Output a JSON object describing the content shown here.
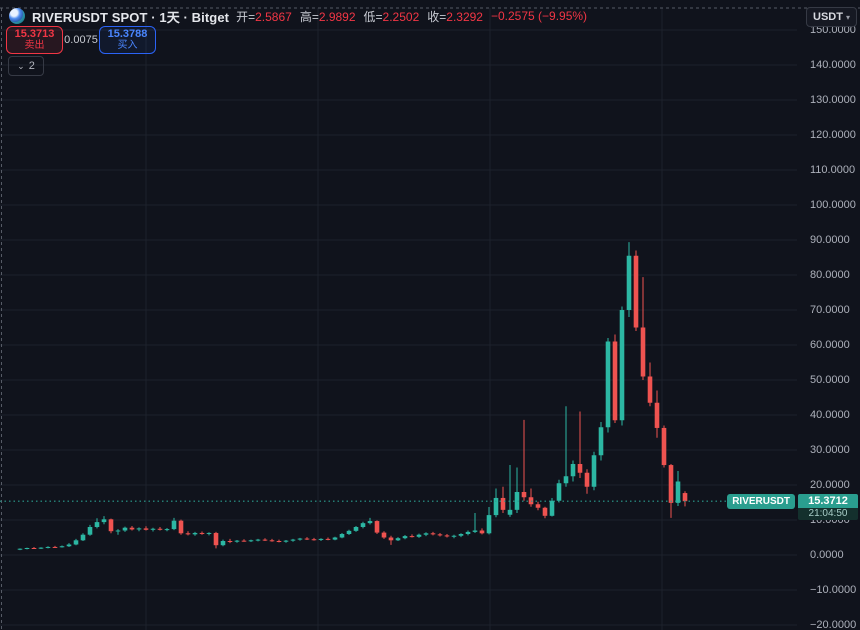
{
  "header": {
    "symbol_title": "RIVERUSDT SPOT · 1天 · Bitget",
    "open_label": "开=",
    "open": "2.5867",
    "high_label": "高=",
    "high": "2.9892",
    "low_label": "低=",
    "low": "2.2502",
    "close_label": "收=",
    "close": "2.3292",
    "change": "−0.2575 (−9.95%)"
  },
  "order_panel": {
    "sell_price": "15.3713",
    "sell_label": "卖出",
    "spread": "0.0075",
    "buy_price": "15.3788",
    "buy_label": "买入"
  },
  "toolbar": {
    "candle_widget_value": "2",
    "chevron": "⌄"
  },
  "price_axis": {
    "currency": "USDT",
    "caret": "▾",
    "labels": [
      "150.0000",
      "140.0000",
      "130.0000",
      "120.0000",
      "110.0000",
      "100.0000",
      "90.0000",
      "80.0000",
      "70.0000",
      "60.0000",
      "50.0000",
      "40.0000",
      "30.0000",
      "20.0000",
      "10.0000",
      "0.0000",
      "−10.0000",
      "−20.0000"
    ],
    "price_tag": {
      "symbol": "RIVERUSDT",
      "price": "15.3712",
      "countdown": "21:04:50"
    }
  },
  "colors": {
    "background": "#10131c",
    "grid": "#1d212c",
    "up": "#2cb7a3",
    "down": "#ef5350",
    "accent_red": "#f23645",
    "accent_blue": "#2b63f6",
    "tag_teal": "#2a9e8f",
    "dashed_border": "#565b66"
  },
  "chart_data": {
    "type": "candlestick",
    "symbol": "RIVERUSDT",
    "market": "SPOT",
    "interval": "1天",
    "exchange": "Bitget",
    "last_price": 15.3712,
    "y_axis": {
      "min": -20,
      "max": 150,
      "tick_step": 10
    },
    "legend_ohlc": {
      "open": 2.5867,
      "high": 2.9892,
      "low": 2.2502,
      "close": 2.3292,
      "change": -0.2575,
      "change_pct": -9.95
    },
    "candles_ohlc": [
      [
        1.6,
        1.9,
        1.4,
        1.8
      ],
      [
        1.8,
        2.1,
        1.6,
        2.0
      ],
      [
        2.0,
        2.3,
        1.8,
        1.9
      ],
      [
        1.9,
        2.2,
        1.7,
        2.1
      ],
      [
        2.1,
        2.5,
        1.9,
        2.3
      ],
      [
        2.3,
        2.6,
        2.0,
        2.2
      ],
      [
        2.2,
        2.7,
        2.1,
        2.5
      ],
      [
        2.5,
        3.4,
        2.3,
        3.0
      ],
      [
        3.0,
        4.6,
        2.8,
        4.2
      ],
      [
        4.2,
        6.2,
        4.0,
        5.8
      ],
      [
        5.8,
        8.6,
        5.5,
        8.0
      ],
      [
        8.0,
        10.5,
        7.6,
        9.4
      ],
      [
        9.4,
        11.1,
        8.8,
        10.2
      ],
      [
        10.2,
        10.4,
        6.2,
        6.8
      ],
      [
        6.8,
        7.4,
        5.8,
        7.0
      ],
      [
        7.0,
        8.1,
        6.6,
        7.8
      ],
      [
        7.8,
        8.3,
        7.0,
        7.3
      ],
      [
        7.3,
        7.9,
        6.8,
        7.6
      ],
      [
        7.6,
        8.2,
        7.0,
        7.2
      ],
      [
        7.2,
        7.8,
        6.7,
        7.5
      ],
      [
        7.5,
        8.0,
        7.0,
        7.2
      ],
      [
        7.2,
        7.7,
        6.8,
        7.4
      ],
      [
        7.4,
        10.6,
        7.1,
        9.8
      ],
      [
        9.8,
        10.1,
        5.8,
        6.2
      ],
      [
        6.2,
        6.8,
        5.6,
        5.9
      ],
      [
        5.9,
        6.6,
        5.5,
        6.3
      ],
      [
        6.3,
        6.7,
        5.8,
        6.1
      ],
      [
        6.1,
        6.5,
        5.6,
        6.3
      ],
      [
        6.3,
        6.6,
        1.9,
        2.8
      ],
      [
        2.8,
        4.4,
        2.5,
        4.0
      ],
      [
        4.0,
        4.6,
        3.4,
        3.8
      ],
      [
        3.8,
        4.3,
        3.5,
        4.1
      ],
      [
        4.1,
        4.5,
        3.8,
        4.0
      ],
      [
        4.0,
        4.4,
        3.7,
        4.2
      ],
      [
        4.2,
        4.6,
        3.9,
        4.4
      ],
      [
        4.4,
        4.8,
        4.0,
        4.2
      ],
      [
        4.2,
        4.6,
        3.8,
        4.0
      ],
      [
        4.0,
        4.4,
        3.6,
        3.8
      ],
      [
        3.8,
        4.3,
        3.5,
        4.1
      ],
      [
        4.1,
        4.6,
        3.8,
        4.4
      ],
      [
        4.4,
        4.9,
        4.1,
        4.7
      ],
      [
        4.7,
        5.1,
        4.3,
        4.5
      ],
      [
        4.5,
        4.9,
        4.1,
        4.3
      ],
      [
        4.3,
        4.8,
        4.0,
        4.6
      ],
      [
        4.6,
        5.0,
        4.2,
        4.4
      ],
      [
        4.4,
        5.2,
        4.2,
        5.0
      ],
      [
        5.0,
        6.3,
        4.8,
        6.0
      ],
      [
        6.0,
        7.2,
        5.7,
        6.9
      ],
      [
        6.9,
        8.3,
        6.6,
        8.0
      ],
      [
        8.0,
        9.5,
        7.6,
        9.1
      ],
      [
        9.1,
        10.6,
        8.7,
        9.7
      ],
      [
        9.7,
        9.9,
        6.0,
        6.4
      ],
      [
        6.4,
        6.8,
        4.6,
        5.0
      ],
      [
        5.0,
        5.5,
        2.9,
        4.2
      ],
      [
        4.2,
        5.1,
        4.0,
        4.8
      ],
      [
        4.8,
        5.7,
        4.5,
        5.4
      ],
      [
        5.4,
        5.9,
        5.0,
        5.2
      ],
      [
        5.2,
        6.1,
        4.9,
        5.8
      ],
      [
        5.8,
        6.5,
        5.4,
        6.2
      ],
      [
        6.2,
        6.6,
        5.6,
        5.9
      ],
      [
        5.9,
        6.3,
        5.3,
        5.6
      ],
      [
        5.6,
        6.0,
        5.0,
        5.3
      ],
      [
        5.3,
        5.8,
        4.8,
        5.5
      ],
      [
        5.5,
        6.2,
        5.1,
        6.0
      ],
      [
        6.0,
        7.0,
        5.6,
        6.6
      ],
      [
        6.6,
        12.0,
        6.3,
        7.0
      ],
      [
        7.0,
        7.6,
        5.9,
        6.2
      ],
      [
        6.2,
        13.7,
        5.9,
        11.4
      ],
      [
        11.4,
        19.0,
        10.8,
        16.3
      ],
      [
        16.3,
        19.5,
        12.0,
        12.9
      ],
      [
        11.5,
        25.7,
        10.9,
        12.9
      ],
      [
        12.9,
        25.0,
        12.0,
        18.0
      ],
      [
        18.0,
        38.6,
        15.5,
        16.5
      ],
      [
        16.5,
        19.0,
        13.8,
        14.5
      ],
      [
        14.5,
        15.2,
        12.8,
        13.5
      ],
      [
        13.5,
        13.8,
        10.5,
        11.2
      ],
      [
        11.2,
        16.3,
        11.0,
        15.5
      ],
      [
        15.5,
        21.5,
        15.0,
        20.5
      ],
      [
        20.5,
        42.5,
        19.5,
        22.5
      ],
      [
        22.5,
        27.0,
        21.0,
        26.0
      ],
      [
        26.0,
        41.0,
        22.0,
        23.5
      ],
      [
        23.5,
        24.5,
        17.5,
        19.5
      ],
      [
        19.5,
        29.5,
        18.5,
        28.5
      ],
      [
        28.5,
        38.0,
        27.0,
        36.5
      ],
      [
        36.5,
        62.0,
        35.0,
        61.0
      ],
      [
        61.0,
        63.0,
        37.7,
        38.5
      ],
      [
        38.5,
        71.0,
        37.0,
        70.0
      ],
      [
        70.0,
        89.4,
        68.0,
        85.5
      ],
      [
        85.5,
        87.0,
        64.0,
        65.0
      ],
      [
        65.0,
        79.4,
        50.0,
        51.0
      ],
      [
        51.0,
        55.0,
        42.5,
        43.5
      ],
      [
        43.5,
        47.0,
        33.5,
        36.3
      ],
      [
        36.3,
        37.0,
        25.0,
        25.7
      ],
      [
        25.7,
        26.0,
        10.6,
        14.9
      ],
      [
        14.9,
        24.0,
        14.0,
        21.0
      ],
      [
        17.7,
        18.2,
        13.9,
        15.37
      ]
    ]
  }
}
